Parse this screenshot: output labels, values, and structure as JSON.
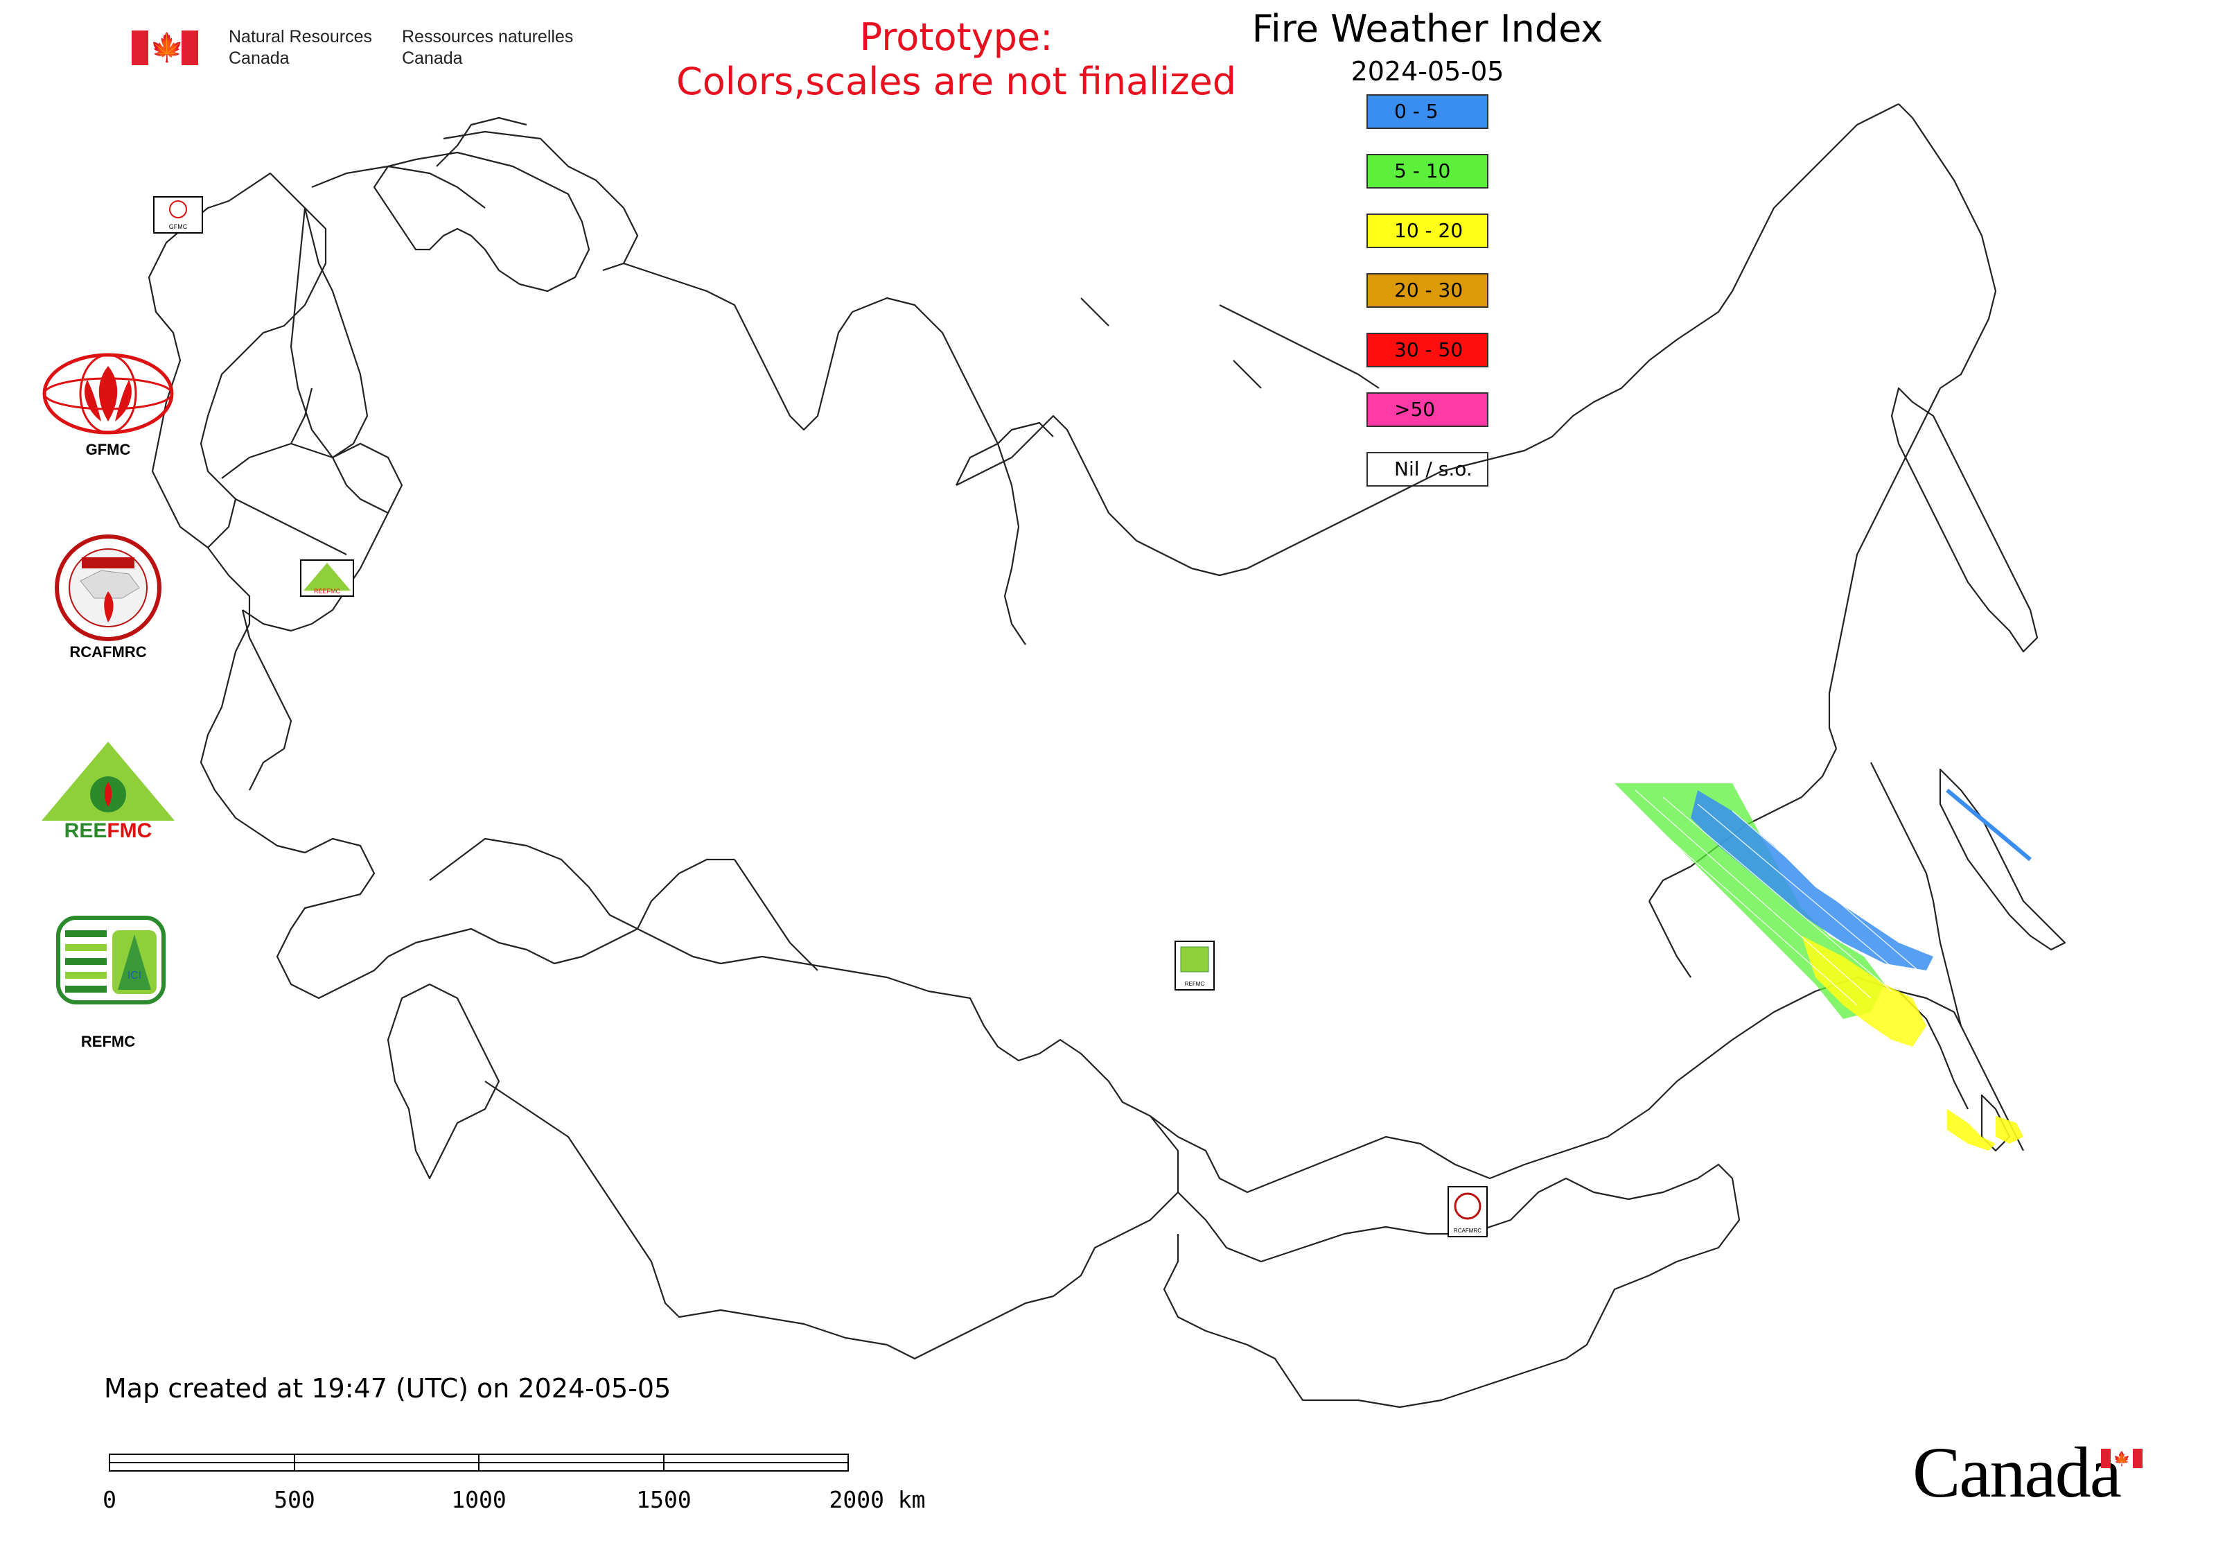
{
  "header": {
    "department_en_line1": "Natural Resources",
    "department_en_line2": "Canada",
    "department_fr_line1": "Ressources naturelles",
    "department_fr_line2": "Canada"
  },
  "notice": {
    "line1": "Prototype:",
    "line2": "Colors,scales are not finalized",
    "color": "#e8101e"
  },
  "legend": {
    "title": "Fire Weather Index",
    "date": "2024-05-05",
    "classes": [
      {
        "label": "0 - 5",
        "color": "#3a8ef0"
      },
      {
        "label": "5 - 10",
        "color": "#5cf03c"
      },
      {
        "label": "10 - 20",
        "color": "#ffff18"
      },
      {
        "label": "20 - 30",
        "color": "#dc9a08"
      },
      {
        "label": "30 - 50",
        "color": "#ff0e0e"
      },
      {
        "label": ">50",
        "color": "#ff3aa6"
      },
      {
        "label": "Nil / s.o.",
        "color": "#ffffff"
      }
    ]
  },
  "partner_logos": {
    "gfmc": {
      "label": "GFMC",
      "map_tag": "GFMC"
    },
    "rcafmrc": {
      "label": "RCAFMRC",
      "map_tag": "RCAFMRC"
    },
    "reefmc": {
      "label": "REEFMC",
      "map_tag": "REEFMC"
    },
    "refmc": {
      "label": "REFMC",
      "map_tag": "REFMC"
    }
  },
  "footer": {
    "created_text": "Map created at 19:47 (UTC) on 2024-05-05",
    "wordmark": "Canada"
  },
  "scale_bar": {
    "ticks": [
      "0",
      "500",
      "1000",
      "1500",
      "2000 km"
    ]
  }
}
